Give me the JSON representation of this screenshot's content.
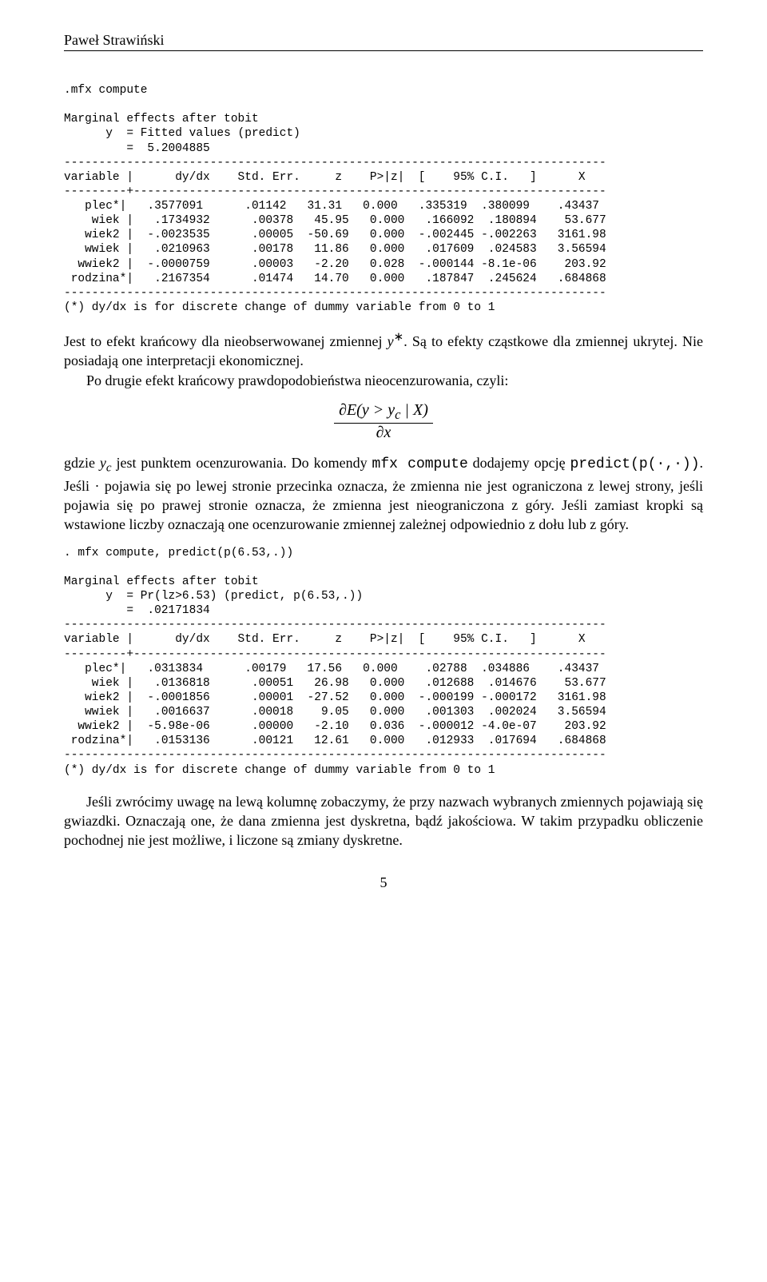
{
  "header": {
    "author": "Paweł Strawiński"
  },
  "code1": {
    "lines": [
      ".mfx compute",
      "",
      "Marginal effects after tobit",
      "      y  = Fitted values (predict)",
      "         =  5.2004885",
      "------------------------------------------------------------------------------",
      "variable |      dy/dx    Std. Err.     z    P>|z|  [    95% C.I.   ]      X",
      "---------+--------------------------------------------------------------------",
      "   plec*|   .3577091      .01142   31.31   0.000   .335319  .380099    .43437",
      "    wiek |   .1734932      .00378   45.95   0.000   .166092  .180894    53.677",
      "   wiek2 |  -.0023535      .00005  -50.69   0.000  -.002445 -.002263   3161.98",
      "   wwiek |   .0210963      .00178   11.86   0.000   .017609  .024583   3.56594",
      "  wwiek2 |  -.0000759      .00003   -2.20   0.028  -.000144 -8.1e-06    203.92",
      " rodzina*|   .2167354      .01474   14.70   0.000   .187847  .245624   .684868",
      "------------------------------------------------------------------------------",
      "(*) dy/dx is for discrete change of dummy variable from 0 to 1"
    ]
  },
  "para1": "Jest to efekt krańcowy dla nieobserwowanej zmiennej y*. Są to efekty cząstkowe dla zmiennej ukrytej. Nie posiadają one interpretacji ekonomicznej.",
  "para2": "Po drugie efekt krańcowy prawdopodobieństwa nieocenzurowania, czyli:",
  "formula": {
    "num": "∂E(y > y_c | X)",
    "den": "∂x"
  },
  "para3_a": "gdzie ",
  "para3_b": " jest punktem ocenzurowania. Do komendy ",
  "para3_c": " dodajemy opcję ",
  "para3_d": ". Jeśli · pojawia się po lewej stronie przecinka oznacza, że zmienna nie jest ograniczona z lewej strony, jeśli pojawia się po prawej stronie oznacza, że zmienna jest nieograniczona z góry. Jeśli zamiast kropki są wstawione liczby oznaczają one ocenzurowanie zmiennej zależnej odpowiednio z dołu lub z góry.",
  "mono1": "mfx compute",
  "mono2": "predict(p(·,·))",
  "yc": "y_c",
  "code2": {
    "lines": [
      ". mfx compute, predict(p(6.53,.))",
      "",
      "Marginal effects after tobit",
      "      y  = Pr(lz>6.53) (predict, p(6.53,.))",
      "         =  .02171834",
      "------------------------------------------------------------------------------",
      "variable |      dy/dx    Std. Err.     z    P>|z|  [    95% C.I.   ]      X",
      "---------+--------------------------------------------------------------------",
      "   plec*|   .0313834      .00179   17.56   0.000    .02788  .034886    .43437",
      "    wiek |   .0136818      .00051   26.98   0.000   .012688  .014676    53.677",
      "   wiek2 |  -.0001856      .00001  -27.52   0.000  -.000199 -.000172   3161.98",
      "   wwiek |   .0016637      .00018    9.05   0.000   .001303  .002024   3.56594",
      "  wwiek2 |  -5.98e-06      .00000   -2.10   0.036  -.000012 -4.0e-07    203.92",
      " rodzina*|   .0153136      .00121   12.61   0.000   .012933  .017694   .684868",
      "------------------------------------------------------------------------------",
      "(*) dy/dx is for discrete change of dummy variable from 0 to 1"
    ]
  },
  "para4": "Jeśli zwrócimy uwagę na lewą kolumnę zobaczymy, że przy nazwach wybranych zmiennych pojawiają się gwiazdki. Oznaczają one, że dana zmienna jest dyskretna, bądź jakościowa. W takim przypadku obliczenie pochodnej nie jest możliwe, i liczone są zmiany dyskretne.",
  "pageNumber": "5"
}
